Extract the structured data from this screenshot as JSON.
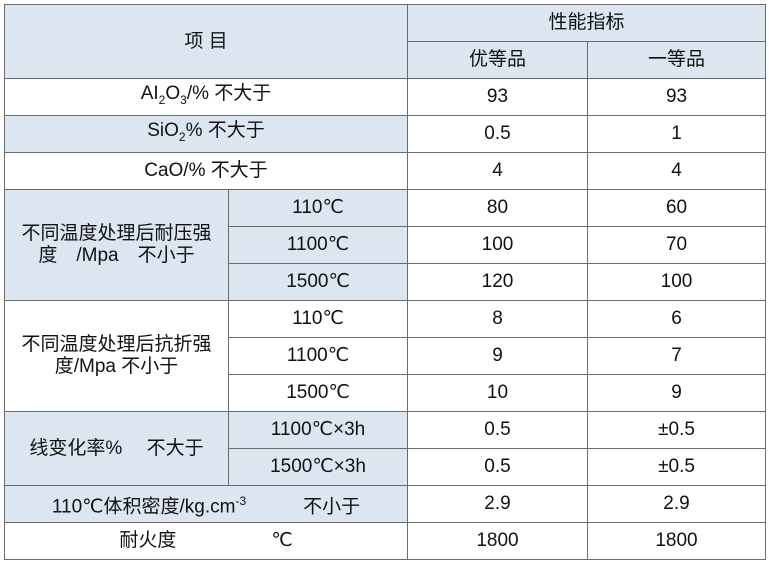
{
  "header": {
    "item": "项 目",
    "spec": "性能指标",
    "grades": [
      "优等品",
      "一等品"
    ]
  },
  "rows": [
    {
      "label": [
        "AI",
        {
          "sub": "2"
        },
        "O",
        {
          "sub": "3"
        },
        "/% 不大于"
      ],
      "values": [
        93,
        93
      ]
    },
    {
      "label": [
        "SiO",
        {
          "sub": "2"
        },
        "% 不大于"
      ],
      "values": [
        0.5,
        1
      ]
    },
    {
      "label": [
        "CaO/% 不大于"
      ],
      "values": [
        4,
        4
      ]
    },
    {
      "group": "不同温度处理后耐压强度　/Mpa　不小于",
      "items": [
        {
          "condition": "110℃",
          "values": [
            80,
            60
          ]
        },
        {
          "condition": "1100℃",
          "values": [
            100,
            70
          ]
        },
        {
          "condition": "1500℃",
          "values": [
            120,
            100
          ]
        }
      ]
    },
    {
      "group": "不同温度处理后抗折强度/Mpa 不小于",
      "items": [
        {
          "condition": "110℃",
          "values": [
            8,
            6
          ]
        },
        {
          "condition": "1100℃",
          "values": [
            9,
            7
          ]
        },
        {
          "condition": "1500℃",
          "values": [
            10,
            9
          ]
        }
      ]
    },
    {
      "group": "线变化率%　 不大于",
      "items": [
        {
          "condition": "1100℃×3h",
          "values": [
            0.5,
            "±0.5"
          ]
        },
        {
          "condition": "1500℃×3h",
          "values": [
            0.5,
            "±0.5"
          ]
        }
      ]
    },
    {
      "label": [
        "110℃体积密度/kg.cm",
        {
          "sup": "-3"
        },
        "　　　不小于"
      ],
      "values": [
        2.9,
        2.9
      ]
    },
    {
      "label": [
        "耐火度　　　　　℃"
      ],
      "values": [
        1800,
        1800
      ]
    }
  ]
}
